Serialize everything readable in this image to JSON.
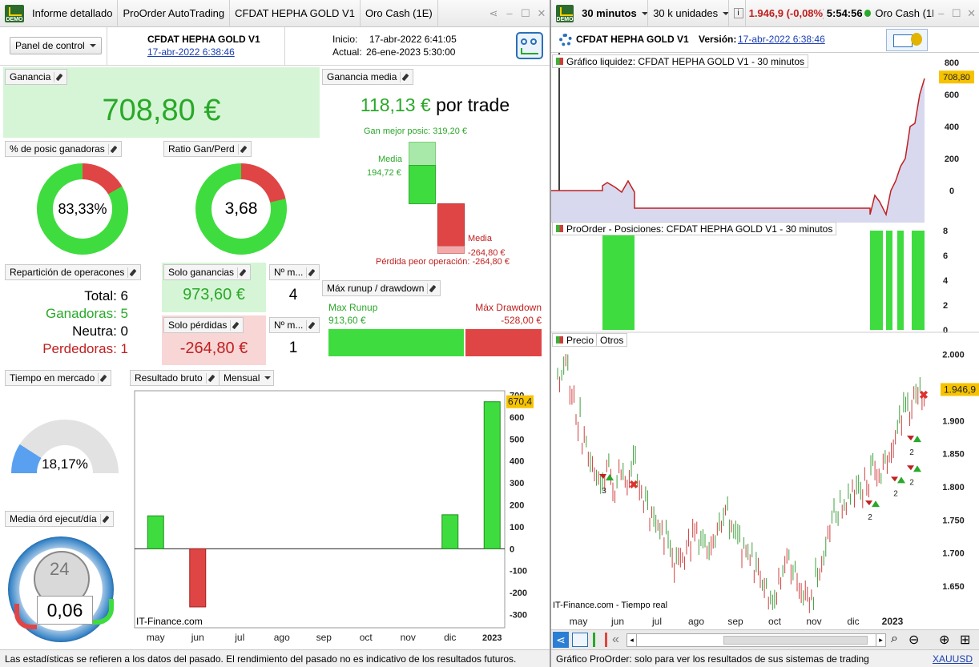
{
  "left_tabs": {
    "demo": "DEMO",
    "items": [
      "Informe detallado",
      "ProOrder AutoTrading",
      "CFDAT HEPHA GOLD V1",
      "Oro Cash (1E)"
    ]
  },
  "summary": {
    "panel_btn": "Panel de control",
    "system_name": "CFDAT HEPHA GOLD V1",
    "system_date": "17-abr-2022 6:38:46",
    "start_label": "Inicio:",
    "start_value": "17-abr-2022 6:41:05",
    "now_label": "Actual:",
    "now_value": "26-ene-2023 5:30:00"
  },
  "gain": {
    "label": "Ganancia",
    "value": "708,80 €"
  },
  "avg_gain": {
    "label": "Ganancia media",
    "value": "118,13 €",
    "suffix": " por trade",
    "best": "Gan mejor posic: 319,20 €",
    "media_lbl": "Media",
    "media_pos": "194,72 €",
    "media_neg_lbl": "Media",
    "media_neg": "-264,80 €",
    "worst": "Pérdida peor operación: -264,80 €"
  },
  "win_pct": {
    "label": "% de posic ganadoras",
    "value": "83,33%",
    "fraction": 0.8333
  },
  "ratio": {
    "label": "Ratio Gan/Perd",
    "value": "3,68",
    "fraction": 0.786
  },
  "repart": {
    "label": "Repartición de operacones",
    "total": "Total: 6",
    "wins": "Ganadoras: 5",
    "neutral": "Neutra: 0",
    "losses": "Perdedoras: 1"
  },
  "only_gains": {
    "label": "Solo ganancias",
    "value": "973,60 €"
  },
  "only_losses": {
    "label": "Solo pérdidas",
    "value": "-264,80 €"
  },
  "nm1": {
    "label": "Nº m...",
    "value": "4"
  },
  "nm2": {
    "label": "Nº m...",
    "value": "1"
  },
  "runup": {
    "label": "Máx runup / drawdown",
    "runup_lbl": "Max Runup",
    "runup_val": "913,60 €",
    "dd_lbl": "Máx Drawdown",
    "dd_val": "-528,00 €",
    "runup_fraction": 0.634
  },
  "market_time": {
    "label": "Tiempo en mercado",
    "value": "18,17%",
    "fraction": 0.1817
  },
  "orders_day": {
    "label": "Media órd ejecut/día",
    "value": "0,06",
    "clock": "24"
  },
  "results": {
    "label": "Resultado bruto",
    "period": "Mensual",
    "watermark": "IT-Finance.com",
    "last": "670,4"
  },
  "chart_data": [
    {
      "type": "bar",
      "title": "Resultado bruto",
      "categories": [
        "may",
        "jun",
        "jul",
        "ago",
        "sep",
        "oct",
        "nov",
        "dic",
        "2023"
      ],
      "values": [
        150,
        -265,
        0,
        0,
        0,
        0,
        0,
        155,
        670
      ],
      "yticks": [
        "700",
        "600",
        "500",
        "400",
        "300",
        "200",
        "100",
        "0",
        "-100",
        "-200",
        "-300"
      ],
      "ylim": [
        -360,
        720
      ]
    },
    {
      "type": "line",
      "title": "Precio",
      "x_labels": [
        "may",
        "jun",
        "jul",
        "ago",
        "sep",
        "oct",
        "nov",
        "dic",
        "2023"
      ],
      "yticks": [
        "2.000",
        "1.950",
        "1.900",
        "1.850",
        "1.800",
        "1.750",
        "1.700",
        "1.650"
      ],
      "ylim": [
        1.615,
        2.02
      ],
      "last": "1.946,9",
      "values": [
        1.97,
        1.99,
        1.94,
        1.9,
        1.87,
        1.84,
        1.82,
        1.81,
        1.83,
        1.8,
        1.82,
        1.81,
        1.83,
        1.8,
        1.78,
        1.76,
        1.74,
        1.73,
        1.71,
        1.69,
        1.7,
        1.72,
        1.74,
        1.72,
        1.71,
        1.73,
        1.74,
        1.76,
        1.73,
        1.72,
        1.7,
        1.69,
        1.68,
        1.66,
        1.64,
        1.63,
        1.66,
        1.7,
        1.68,
        1.65,
        1.64,
        1.63,
        1.66,
        1.7,
        1.74,
        1.76,
        1.77,
        1.78,
        1.8,
        1.79,
        1.81,
        1.83,
        1.82,
        1.84,
        1.86,
        1.89,
        1.91,
        1.92,
        1.94,
        1.946
      ]
    },
    {
      "type": "area",
      "title": "Gráfico liquidez",
      "yticks": [
        "800",
        "600",
        "400",
        "200",
        "0"
      ],
      "ylim": [
        -200,
        860
      ],
      "last": "708,80"
    },
    {
      "type": "bar",
      "title": "ProOrder - Posiciones",
      "yticks": [
        "8",
        "6",
        "4",
        "2",
        "0"
      ],
      "ylim": [
        0,
        8
      ],
      "last": "0"
    }
  ],
  "right_top": {
    "demo": "DEMO",
    "timeframe": "30 minutos",
    "units": "30 k unidades",
    "price": "1.946,9 (-0,08%)",
    "time": "5:54:56",
    "instrument": "Oro Cash (1E"
  },
  "right_sub": {
    "system": "CFDAT HEPHA GOLD V1",
    "version_label": "Versión:",
    "version_date": "17-abr-2022 6:38:46"
  },
  "liq_label": "Gráfico liquidez: CFDAT HEPHA GOLD V1 - 30 minutos",
  "pos_label": "ProOrder - Posiciones: CFDAT HEPHA GOLD V1 - 30 minutos",
  "price_label": "Precio",
  "others_label": "Otros",
  "price_watermark": "IT-Finance.com - Tiempo real",
  "markers": [
    "3",
    "2",
    "2",
    "2",
    "2"
  ],
  "footer_left": "Las estadísticas se refieren a los datos del pasado. El rendimiento del pasado no es indicativo de los resultados futuros.",
  "footer_right": "Gráfico ProOrder: solo para ver los resultados de sus sistemas de trading",
  "footer_link": "XAUUSD",
  "colors": {
    "green": "#3fdc3f",
    "red": "#e04545",
    "gain_bg": "#d6f5d6",
    "loss_bg": "#f8d6d6",
    "area": "#d8d8ee"
  }
}
